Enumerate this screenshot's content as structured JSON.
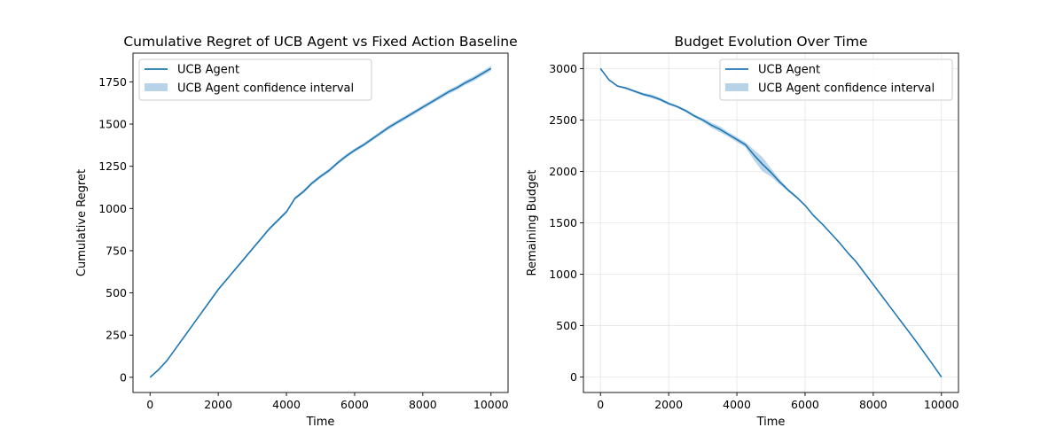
{
  "chart_data": [
    {
      "type": "line",
      "title": "Cumulative Regret of UCB Agent vs Fixed Action Baseline",
      "xlabel": "Time",
      "ylabel": "Cumulative Regret",
      "xlim": [
        -500,
        10500
      ],
      "ylim": [
        -90,
        1920
      ],
      "xticks": [
        0,
        2000,
        4000,
        6000,
        8000,
        10000
      ],
      "yticks": [
        0,
        250,
        500,
        750,
        1000,
        1250,
        1500,
        1750
      ],
      "grid": false,
      "legend_position": "top-left",
      "series": [
        {
          "name": "UCB Agent",
          "color": "#1f77b4",
          "x": [
            0,
            250,
            500,
            750,
            1000,
            1250,
            1500,
            1750,
            2000,
            2250,
            2500,
            2750,
            3000,
            3250,
            3500,
            3750,
            4000,
            4250,
            4500,
            4750,
            5000,
            5250,
            5500,
            5750,
            6000,
            6250,
            6500,
            6750,
            7000,
            7250,
            7500,
            7750,
            8000,
            8250,
            8500,
            8750,
            9000,
            9250,
            9500,
            9750,
            10000
          ],
          "y": [
            0,
            45,
            100,
            170,
            240,
            310,
            380,
            450,
            520,
            580,
            640,
            700,
            760,
            820,
            880,
            930,
            980,
            1060,
            1100,
            1150,
            1190,
            1225,
            1270,
            1310,
            1345,
            1375,
            1410,
            1445,
            1480,
            1510,
            1540,
            1570,
            1600,
            1630,
            1660,
            1690,
            1715,
            1745,
            1770,
            1800,
            1830
          ],
          "band_halfwidth": [
            0,
            3,
            4,
            5,
            5,
            6,
            6,
            7,
            7,
            7,
            8,
            8,
            8,
            8,
            9,
            9,
            9,
            9,
            10,
            10,
            10,
            10,
            10,
            11,
            11,
            11,
            11,
            11,
            12,
            12,
            12,
            12,
            12,
            12,
            13,
            13,
            13,
            13,
            14,
            14,
            15
          ]
        },
        {
          "name": "UCB Agent confidence interval",
          "color": "#b6d3e8"
        }
      ]
    },
    {
      "type": "line",
      "title": "Budget Evolution Over Time",
      "xlabel": "Time",
      "ylabel": "Remaining Budget",
      "xlim": [
        -500,
        10500
      ],
      "ylim": [
        -150,
        3150
      ],
      "xticks": [
        0,
        2000,
        4000,
        6000,
        8000,
        10000
      ],
      "yticks": [
        0,
        500,
        1000,
        1500,
        2000,
        2500,
        3000
      ],
      "grid": true,
      "legend_position": "top-right",
      "series": [
        {
          "name": "UCB Agent",
          "color": "#1f77b4",
          "x": [
            0,
            250,
            500,
            750,
            1000,
            1250,
            1500,
            1750,
            2000,
            2250,
            2500,
            2750,
            3000,
            3250,
            3500,
            3750,
            4000,
            4250,
            4500,
            4750,
            5000,
            5250,
            5500,
            5750,
            6000,
            6250,
            6500,
            6750,
            7000,
            7250,
            7500,
            7750,
            8000,
            8250,
            8500,
            8750,
            9000,
            9250,
            9500,
            9750,
            10000
          ],
          "y": [
            3000,
            2890,
            2830,
            2810,
            2780,
            2750,
            2730,
            2700,
            2660,
            2630,
            2590,
            2540,
            2500,
            2450,
            2410,
            2360,
            2310,
            2260,
            2160,
            2070,
            1990,
            1900,
            1820,
            1750,
            1670,
            1570,
            1490,
            1400,
            1310,
            1210,
            1120,
            1010,
            900,
            790,
            680,
            570,
            460,
            350,
            235,
            120,
            0
          ],
          "band_halfwidth": [
            0,
            6,
            8,
            10,
            12,
            14,
            18,
            15,
            14,
            12,
            14,
            15,
            18,
            25,
            28,
            22,
            25,
            24,
            50,
            70,
            40,
            25,
            15,
            12,
            10,
            8,
            6,
            6,
            5,
            5,
            4,
            4,
            4,
            3,
            3,
            3,
            2,
            2,
            2,
            1,
            0
          ]
        },
        {
          "name": "UCB Agent confidence interval",
          "color": "#b6d3e8"
        }
      ]
    }
  ]
}
